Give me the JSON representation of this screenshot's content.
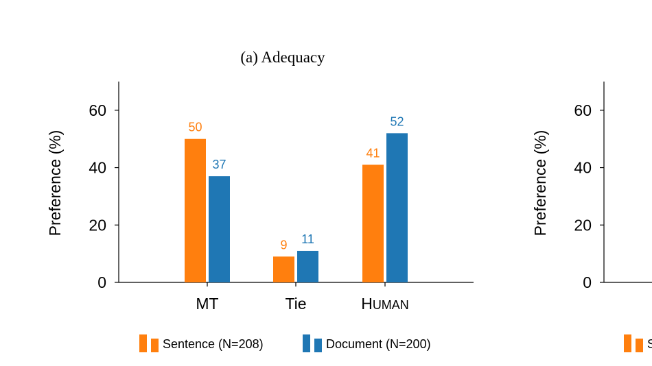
{
  "chart_data": [
    {
      "type": "bar",
      "title": "(a) Adequacy",
      "ylabel": "Preference (%)",
      "xlabel": "",
      "ylim": [
        0,
        70
      ],
      "yticks": [
        0,
        20,
        40,
        60
      ],
      "grid": false,
      "legend_position": "bottom",
      "categories": [
        "MT",
        "Tie",
        "HUMAN"
      ],
      "series": [
        {
          "name": "Sentence (N=208)",
          "values": [
            50,
            9,
            41
          ],
          "color": "#ff7f0e"
        },
        {
          "name": "Document (N=200)",
          "values": [
            37,
            11,
            52
          ],
          "color": "#1f77b4"
        }
      ]
    },
    {
      "type": "bar",
      "title": "",
      "ylabel": "Preference (%)",
      "xlabel": "",
      "ylim": [
        0,
        70
      ],
      "yticks": [
        0,
        20,
        40,
        60
      ],
      "grid": false,
      "legend_position": "bottom",
      "partially_visible": true,
      "legend_visible_text": "S",
      "colors": [
        "#ff7f0e",
        "#1f77b4"
      ]
    }
  ]
}
